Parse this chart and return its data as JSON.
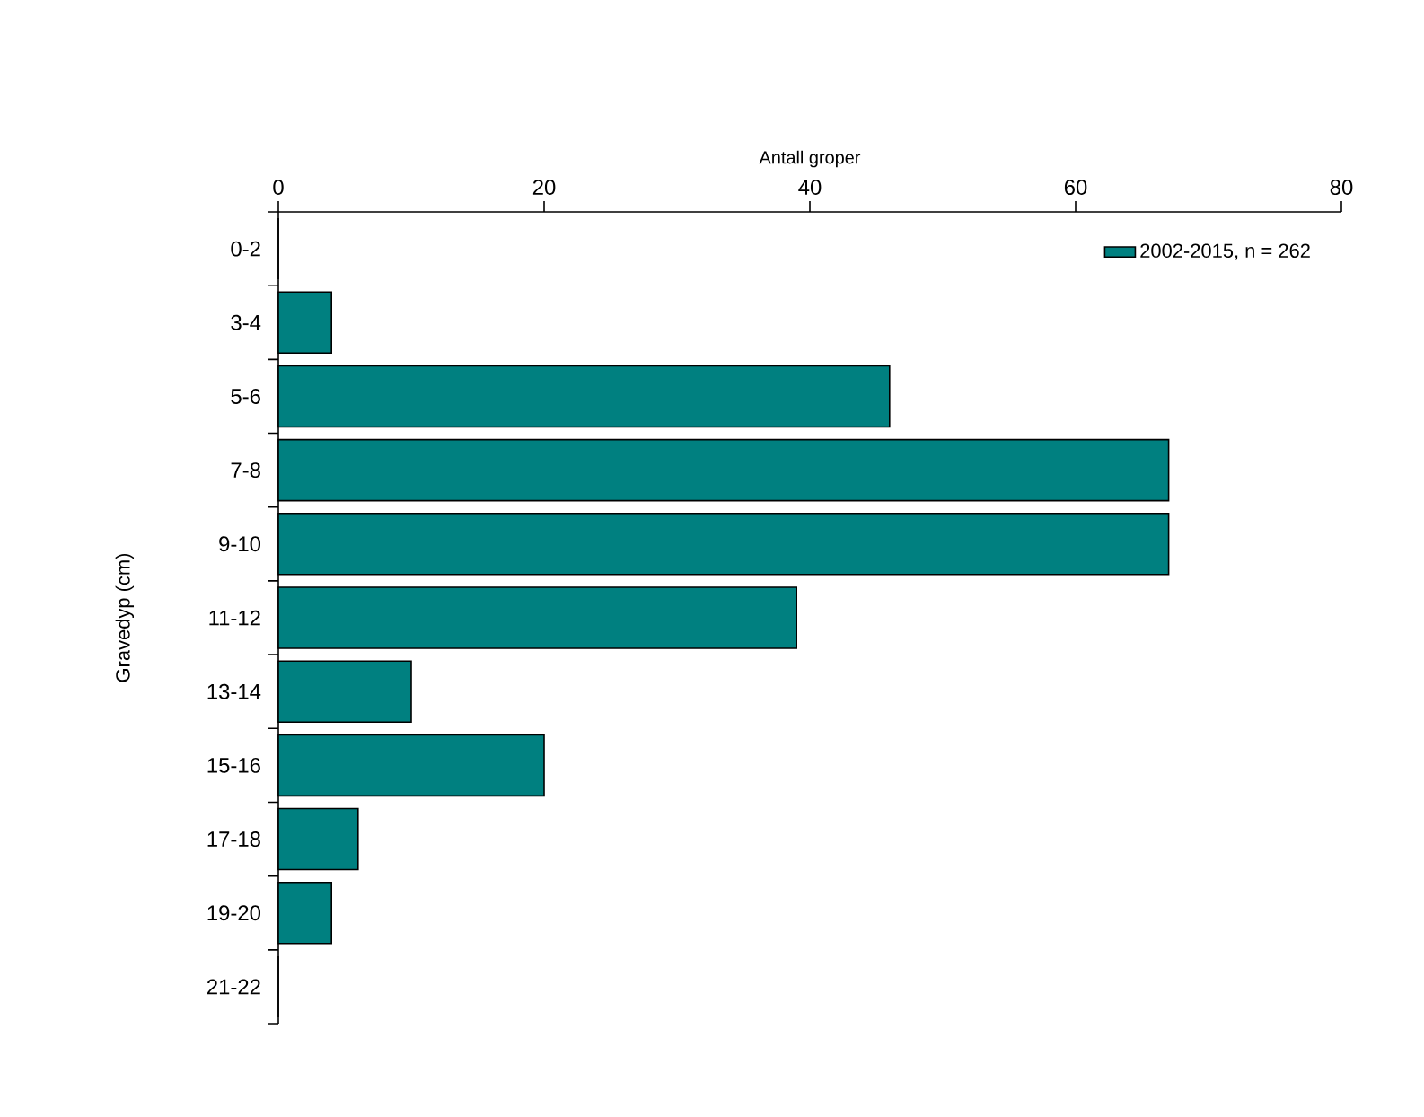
{
  "chart_data": {
    "type": "bar",
    "orientation": "horizontal",
    "xlabel": "Antall groper",
    "ylabel": "Gravedyp (cm)",
    "categories": [
      "0-2",
      "3-4",
      "5-6",
      "7-8",
      "9-10",
      "11-12",
      "13-14",
      "15-16",
      "17-18",
      "19-20",
      "21-22"
    ],
    "series": [
      {
        "name": "2002-2015, n = 262",
        "color": "#008080",
        "values": [
          0,
          4,
          46,
          67,
          67,
          39,
          10,
          20,
          6,
          4,
          0
        ]
      }
    ],
    "xlim": [
      0,
      80
    ],
    "xticks": [
      0,
      20,
      40,
      60,
      80
    ],
    "legend": "top right"
  }
}
